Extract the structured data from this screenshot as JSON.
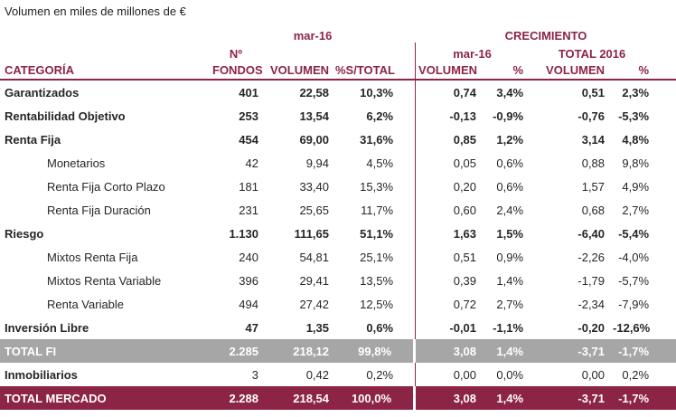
{
  "title": "Volumen en miles de millones de €",
  "colors": {
    "maroon": "#8C2446",
    "gray": "#A6A6A6",
    "text": "#262626"
  },
  "header": {
    "group_mar16": "mar-16",
    "group_crecimiento": "CRECIMIENTO",
    "sub_n": "Nº",
    "sub_mar16": "mar-16",
    "sub_total2016": "TOTAL 2016",
    "col_categoria": "CATEGORÍA",
    "col_fondos": "FONDOS",
    "col_volumen": "VOLUMEN",
    "col_pct_total": "%S/TOTAL",
    "col_c_volumen": "VOLUMEN",
    "col_c_pct": "%",
    "col_t_volumen": "VOLUMEN",
    "col_t_pct": "%"
  },
  "rows": [
    {
      "style": "main",
      "label": "Garantizados",
      "fondos": "401",
      "volumen": "22,58",
      "pct_total": "10,3%",
      "c_volumen": "0,74",
      "c_pct": "3,4%",
      "t_volumen": "0,51",
      "t_pct": "2,3%"
    },
    {
      "style": "main",
      "label": "Rentabilidad Objetivo",
      "fondos": "253",
      "volumen": "13,54",
      "pct_total": "6,2%",
      "c_volumen": "-0,13",
      "c_pct": "-0,9%",
      "t_volumen": "-0,76",
      "t_pct": "-5,3%"
    },
    {
      "style": "main",
      "label": "Renta Fija",
      "fondos": "454",
      "volumen": "69,00",
      "pct_total": "31,6%",
      "c_volumen": "0,85",
      "c_pct": "1,2%",
      "t_volumen": "3,14",
      "t_pct": "4,8%"
    },
    {
      "style": "sub",
      "label": "Monetarios",
      "fondos": "42",
      "volumen": "9,94",
      "pct_total": "4,5%",
      "c_volumen": "0,05",
      "c_pct": "0,6%",
      "t_volumen": "0,88",
      "t_pct": "9,8%"
    },
    {
      "style": "sub",
      "label": "Renta Fija Corto Plazo",
      "fondos": "181",
      "volumen": "33,40",
      "pct_total": "15,3%",
      "c_volumen": "0,20",
      "c_pct": "0,6%",
      "t_volumen": "1,57",
      "t_pct": "4,9%"
    },
    {
      "style": "sub",
      "label": "Renta Fija Duración",
      "fondos": "231",
      "volumen": "25,65",
      "pct_total": "11,7%",
      "c_volumen": "0,60",
      "c_pct": "2,4%",
      "t_volumen": "0,68",
      "t_pct": "2,7%"
    },
    {
      "style": "main",
      "label": "Riesgo",
      "fondos": "1.130",
      "volumen": "111,65",
      "pct_total": "51,1%",
      "c_volumen": "1,63",
      "c_pct": "1,5%",
      "t_volumen": "-6,40",
      "t_pct": "-5,4%"
    },
    {
      "style": "sub",
      "label": "Mixtos Renta Fija",
      "fondos": "240",
      "volumen": "54,81",
      "pct_total": "25,1%",
      "c_volumen": "0,51",
      "c_pct": "0,9%",
      "t_volumen": "-2,26",
      "t_pct": "-4,0%"
    },
    {
      "style": "sub",
      "label": "Mixtos Renta Variable",
      "fondos": "396",
      "volumen": "29,41",
      "pct_total": "13,5%",
      "c_volumen": "0,39",
      "c_pct": "1,4%",
      "t_volumen": "-1,79",
      "t_pct": "-5,7%"
    },
    {
      "style": "sub",
      "label": "Renta Variable",
      "fondos": "494",
      "volumen": "27,42",
      "pct_total": "12,5%",
      "c_volumen": "0,72",
      "c_pct": "2,7%",
      "t_volumen": "-2,34",
      "t_pct": "-7,9%"
    },
    {
      "style": "main",
      "label": "Inversión Libre",
      "fondos": "47",
      "volumen": "1,35",
      "pct_total": "0,6%",
      "c_volumen": "-0,01",
      "c_pct": "-1,1%",
      "t_volumen": "-0,20",
      "t_pct": "-12,6%"
    },
    {
      "style": "total-fi",
      "label": "TOTAL FI",
      "fondos": "2.285",
      "volumen": "218,12",
      "pct_total": "99,8%",
      "c_volumen": "3,08",
      "c_pct": "1,4%",
      "t_volumen": "-3,71",
      "t_pct": "-1,7%"
    },
    {
      "style": "label-bold",
      "label": "Inmobiliarios",
      "fondos": "3",
      "volumen": "0,42",
      "pct_total": "0,2%",
      "c_volumen": "0,00",
      "c_pct": "0,0%",
      "t_volumen": "0,00",
      "t_pct": "0,2%"
    },
    {
      "style": "total-mercado",
      "label": "TOTAL MERCADO",
      "fondos": "2.288",
      "volumen": "218,54",
      "pct_total": "100,0%",
      "c_volumen": "3,08",
      "c_pct": "1,4%",
      "t_volumen": "-3,71",
      "t_pct": "-1,7%"
    }
  ]
}
